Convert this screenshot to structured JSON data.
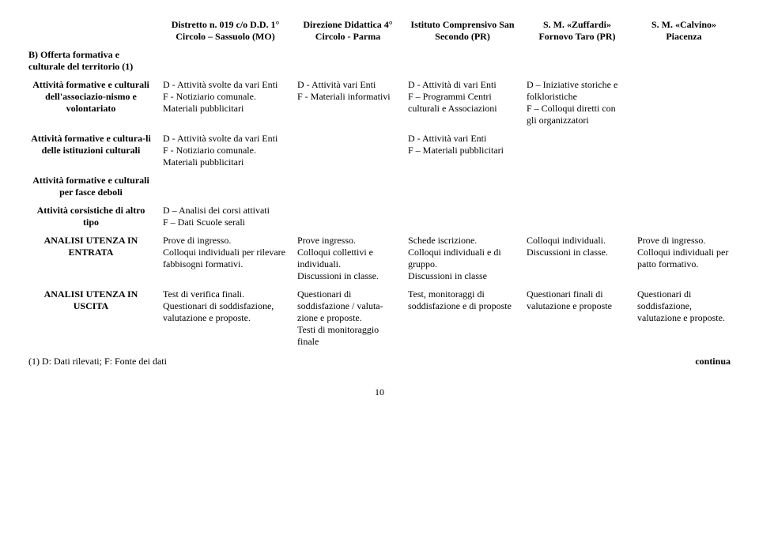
{
  "headers": {
    "c0": "",
    "c1": "Distretto n. 019 c/o D.D. 1° Circolo – Sassuolo (MO)",
    "c2": "Direzione Didattica 4° Circolo - Parma",
    "c3": "Istituto Comprensivo San Secondo (PR)",
    "c4": "S. M. «Zuffardi» Fornovo Taro (PR)",
    "c5": "S. M. «Calvino» Piacenza"
  },
  "sectionB": "B) Offerta formativa e culturale del territorio (1)",
  "rows": {
    "r1": {
      "label": "Attività formative e culturali dell'associazio-nismo e volontariato",
      "c1": "D - Attività svolte da vari Enti\nF - Notiziario comunale. Materiali pubblicitari",
      "c2": "D - Attività vari Enti\nF - Materiali informativi",
      "c3": "D - Attività di vari Enti\nF – Programmi Centri culturali e Associazioni",
      "c4": "D – Iniziative storiche e folkloristiche\nF – Colloqui diretti con gli organizzatori",
      "c5": ""
    },
    "r2": {
      "label": "Attività formative e cultura-li delle istituzioni culturali",
      "c1": "D - Attività svolte da vari Enti\nF - Notiziario comunale. Materiali pubblicitari",
      "c2": "",
      "c3": "D - Attività vari Enti\nF – Materiali pubblicitari",
      "c4": "",
      "c5": ""
    },
    "r3": {
      "label": "Attività formative e culturali per fasce deboli",
      "c1": "",
      "c2": "",
      "c3": "",
      "c4": "",
      "c5": ""
    },
    "r4": {
      "label": "Attività corsistiche di altro tipo",
      "c1": "D – Analisi dei corsi attivati\nF – Dati Scuole serali",
      "c2": "",
      "c3": "",
      "c4": "",
      "c5": ""
    },
    "r5": {
      "label": "ANALISI UTENZA IN ENTRATA",
      "c1": "Prove di ingresso.\nColloqui individuali per rilevare fabbisogni formativi.",
      "c2": "Prove ingresso.\nColloqui collettivi e individuali.\nDiscussioni in classe.",
      "c3": "Schede iscrizione.\nColloqui individuali e di gruppo.\nDiscussioni in classe",
      "c4": "Colloqui individuali.\nDiscussioni in classe.",
      "c5": "Prove di ingresso.\nColloqui individuali per patto formativo."
    },
    "r6": {
      "label": "ANALISI UTENZA IN USCITA",
      "c1": "Test di verifica finali.\nQuestionari di soddisfazione, valutazione e proposte.",
      "c2": "Questionari di soddisfazione / valuta-zione e proposte.\nTesti di monitoraggio finale",
      "c3": "Test, monitoraggi di soddisfazione e di proposte",
      "c4": "Questionari finali di valutazione e proposte",
      "c5": "Questionari di soddisfazione, valutazione e proposte."
    }
  },
  "footnote": "(1) D: Dati rilevati; F: Fonte dei dati",
  "continua": "continua",
  "pagenum": "10"
}
